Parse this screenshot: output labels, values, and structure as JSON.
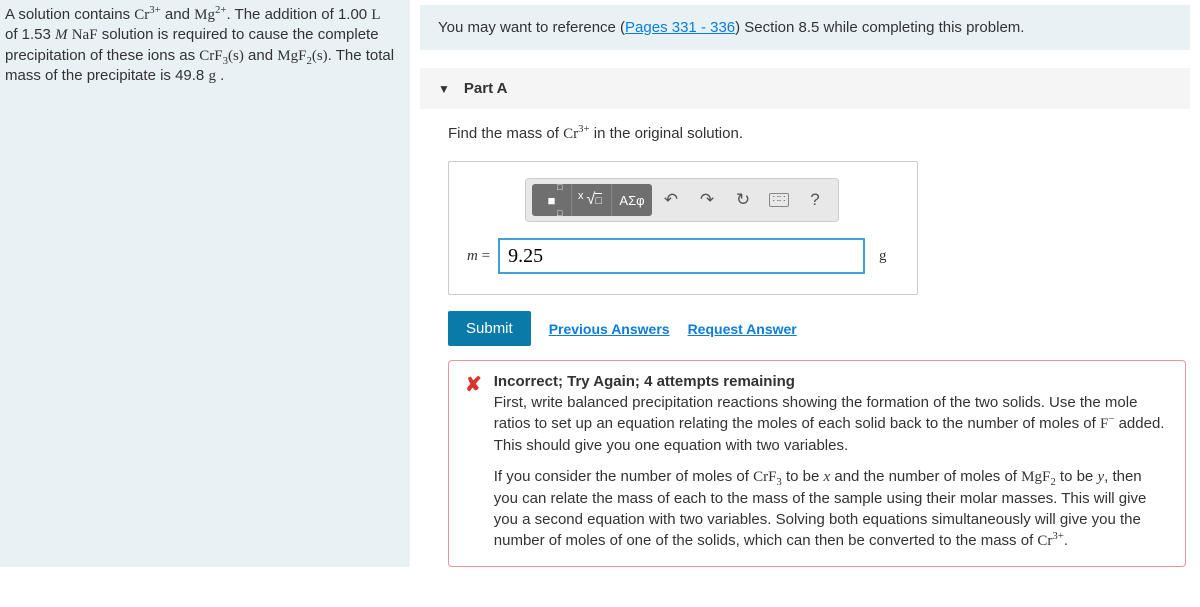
{
  "problem": {
    "text_html": "A solution contains <span class='chem'>Cr<sup>3+</sup></span> and <span class='chem'>Mg<sup>2+</sup></span>. The addition of 1.00 <span class='chem'>L</span> of 1.53 <span class='ital serif'>M</span> <span class='chem'>NaF</span> solution is required to cause the complete precipitation of these ions as <span class='chem'>CrF<sub>3</sub>(s)</span> and <span class='chem'>MgF<sub>2</sub>(s)</span>. The total mass of the precipitate is 49.8 <span class='chem'>g</span> ."
  },
  "reference": {
    "prefix": "You may want to reference (",
    "link": "Pages 331 - 336",
    "suffix": ") Section 8.5 while completing this problem."
  },
  "part": {
    "label": "Part A",
    "question_html": "Find the mass of <span class='chem'>Cr<sup>3+</sup></span> in the original solution."
  },
  "toolbar": {
    "template": "■",
    "root": "√□",
    "greek": "ΑΣφ",
    "undo": "↶",
    "redo": "↷",
    "reset": "↻",
    "keyboard": "⌨",
    "help": "?"
  },
  "input": {
    "lhs": "m",
    "equals": " = ",
    "value": "9.25",
    "unit": "g"
  },
  "actions": {
    "submit": "Submit",
    "previous": "Previous Answers",
    "request": "Request Answer"
  },
  "feedback": {
    "icon": "✘",
    "title": "Incorrect; Try Again; 4 attempts remaining",
    "p1_html": "First, write balanced precipitation reactions showing the formation of the two solids. Use the mole ratios to set up an equation relating the moles of each solid back to the number of moles of <span class='chem'>F<sup>−</sup></span> added. This should give you one equation with two variables.",
    "p2_html": "If you consider the number of moles of <span class='chem'>CrF<sub>3</sub></span> to be <span class='ital serif'>x</span> and the number of moles of <span class='chem'>MgF<sub>2</sub></span> to be <span class='ital serif'>y</span>, then you can relate the mass of each to the mass of the sample using their molar masses. This will give you a second equation with two variables. Solving both equations simultaneously will give you the number of moles of one of the solids, which can then be converted to the mass of <span class='chem'>Cr<sup>3+</sup></span>."
  },
  "colors": {
    "panel_bg": "#e8f1f4",
    "link": "#0b7dda",
    "submit_bg": "#0a7ba8",
    "input_border": "#3da0d9",
    "feedback_border": "#e29a9a",
    "error": "#d9352b"
  }
}
